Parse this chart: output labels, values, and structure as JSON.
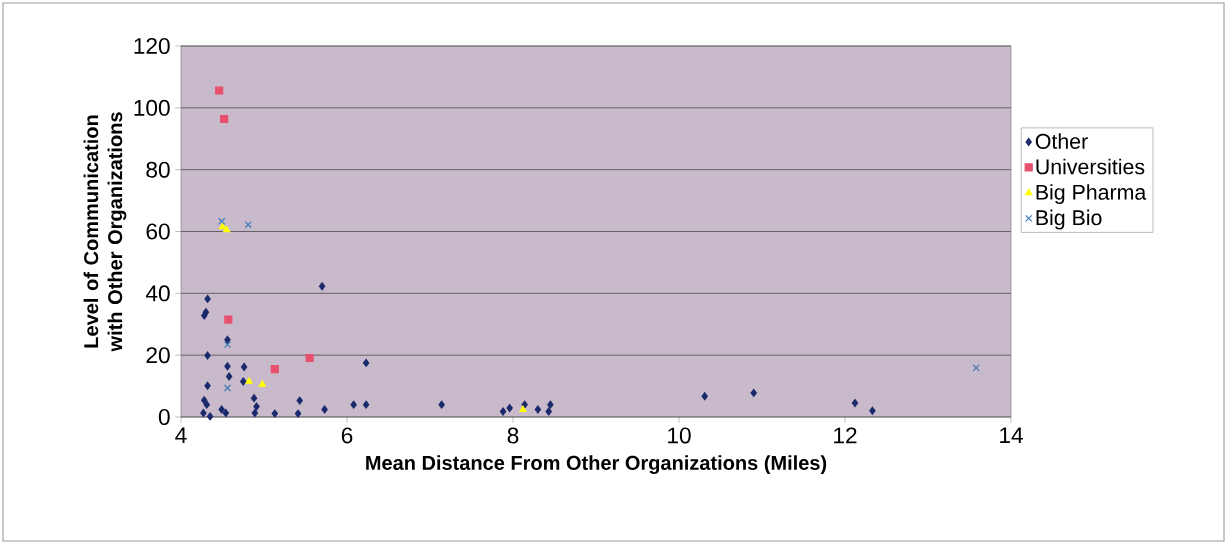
{
  "chart_data": {
    "type": "scatter",
    "xlabel": "Mean Distance From Other Organizations (Miles)",
    "ylabel": "Level of Communication with Other Organizations",
    "xlim": [
      4,
      14
    ],
    "xticks": [
      4,
      6,
      8,
      10,
      12,
      14
    ],
    "ylim": [
      0,
      120
    ],
    "yticks": [
      0,
      20,
      40,
      60,
      80,
      100,
      120
    ],
    "grid": "y",
    "legend": "right",
    "series": [
      {
        "name": "Other",
        "color": "#1a2a6c",
        "marker": "diamond",
        "x": [
          4.32,
          4.3,
          4.28,
          5.7,
          4.56,
          4.32,
          6.23,
          4.56,
          4.76,
          4.58,
          4.75,
          4.32,
          4.88,
          4.91,
          4.28,
          4.31,
          4.27,
          4.35,
          4.49,
          4.54,
          4.89,
          5.13,
          5.43,
          5.41,
          5.73,
          6.08,
          6.23,
          7.14,
          7.88,
          7.96,
          8.14,
          8.3,
          8.43,
          8.45,
          10.31,
          10.9,
          12.12,
          12.33
        ],
        "values": [
          38.2,
          33.9,
          32.8,
          42.3,
          25.0,
          19.9,
          17.5,
          16.4,
          16.2,
          13.1,
          11.5,
          10.1,
          6.1,
          3.4,
          5.4,
          4.0,
          1.3,
          0.2,
          2.4,
          1.3,
          1.3,
          1.1,
          5.3,
          1.1,
          2.4,
          4.0,
          4.0,
          4.0,
          1.8,
          2.9,
          4.0,
          2.4,
          1.8,
          4.0,
          6.7,
          7.8,
          4.5,
          2.0
        ]
      },
      {
        "name": "Universities",
        "color": "#e8506e",
        "marker": "square",
        "x": [
          4.46,
          4.52,
          4.57,
          5.55,
          5.13
        ],
        "values": [
          105.6,
          96.4,
          31.5,
          19.1,
          15.5
        ]
      },
      {
        "name": "Big Pharma",
        "color": "#ffff00",
        "marker": "triangle",
        "x": [
          4.5,
          4.55,
          4.82,
          4.98,
          8.12
        ],
        "values": [
          61.5,
          60.5,
          11.5,
          10.5,
          2.4
        ]
      },
      {
        "name": "Big Bio",
        "color": "#3a7ab8",
        "marker": "cross",
        "x": [
          4.49,
          4.81,
          4.56,
          4.56,
          13.58
        ],
        "values": [
          63.3,
          62.2,
          23.4,
          9.4,
          15.9
        ]
      }
    ]
  }
}
